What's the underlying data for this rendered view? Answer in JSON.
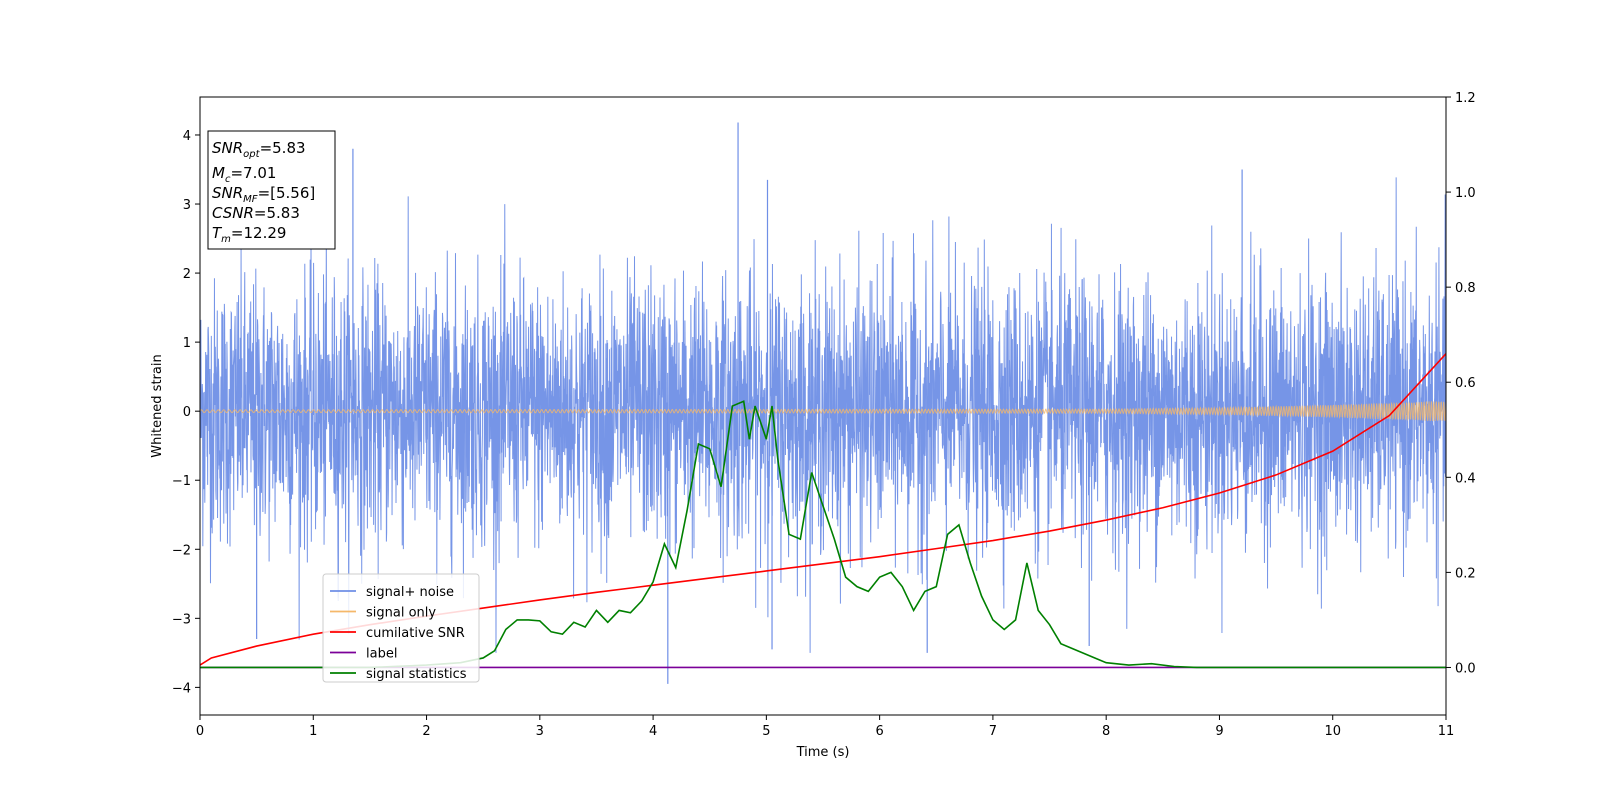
{
  "chart_data": {
    "type": "line",
    "xlabel": "Time (s)",
    "ylabel": "Whitened strain",
    "xlim": [
      0,
      11
    ],
    "ylim_left": [
      -4.4,
      4.55
    ],
    "ylim_right": [
      -0.1,
      1.2
    ],
    "x_ticks": [
      "0",
      "1",
      "2",
      "3",
      "4",
      "5",
      "6",
      "7",
      "8",
      "9",
      "10",
      "11"
    ],
    "y_ticks_left": [
      "−4",
      "−3",
      "−2",
      "−1",
      "0",
      "1",
      "2",
      "3",
      "4"
    ],
    "y_ticks_right": [
      "0.0",
      "0.2",
      "0.4",
      "0.6",
      "0.8",
      "1.0",
      "1.2"
    ],
    "grid": false,
    "legend_placement": "lower-left",
    "info_box": {
      "snr_opt": "=5.83",
      "mc": "=7.01",
      "snr_mf": "=[5.56]",
      "csnr": "=5.83",
      "tm": "=12.29"
    },
    "series": [
      {
        "name": "signal+ noise",
        "axis": "left",
        "color": "#6f8fe6",
        "description_values": {
          "typical_range": [
            -2.3,
            2.3
          ],
          "max_peak": 4.18,
          "min_peak": -3.95
        }
      },
      {
        "name": "signal only",
        "axis": "left",
        "color": "#f5b86a",
        "envelope": {
          "x": [
            0,
            8,
            9,
            10,
            11
          ],
          "amplitude": [
            0.02,
            0.03,
            0.05,
            0.09,
            0.15
          ]
        }
      },
      {
        "name": "cumilative SNR",
        "axis": "right",
        "color": "#ff0000",
        "x": [
          0,
          0.1,
          0.5,
          1,
          1.5,
          2,
          2.5,
          3,
          3.5,
          4,
          4.5,
          5,
          5.5,
          6,
          6.5,
          7,
          7.5,
          8,
          8.5,
          9,
          9.5,
          10,
          10.5,
          11
        ],
        "values": [
          0.005,
          0.02,
          0.045,
          0.07,
          0.09,
          0.108,
          0.125,
          0.142,
          0.158,
          0.173,
          0.188,
          0.203,
          0.218,
          0.233,
          0.25,
          0.267,
          0.287,
          0.31,
          0.336,
          0.367,
          0.405,
          0.455,
          0.53,
          0.66
        ]
      },
      {
        "name": "label",
        "axis": "right",
        "color": "#7b0099",
        "x": [
          0,
          11
        ],
        "values": [
          0.0,
          0.0
        ]
      },
      {
        "name": "signal statistics",
        "axis": "right",
        "color": "#008000",
        "x": [
          0,
          0.5,
          1,
          1.5,
          2,
          2.3,
          2.5,
          2.6,
          2.7,
          2.8,
          2.9,
          3.0,
          3.1,
          3.2,
          3.3,
          3.4,
          3.5,
          3.6,
          3.7,
          3.8,
          3.9,
          4.0,
          4.1,
          4.2,
          4.3,
          4.4,
          4.5,
          4.6,
          4.7,
          4.8,
          4.85,
          4.9,
          5.0,
          5.05,
          5.1,
          5.2,
          5.3,
          5.4,
          5.5,
          5.6,
          5.7,
          5.8,
          5.9,
          6.0,
          6.1,
          6.2,
          6.3,
          6.4,
          6.5,
          6.6,
          6.7,
          6.8,
          6.9,
          7.0,
          7.1,
          7.2,
          7.3,
          7.4,
          7.5,
          7.6,
          7.7,
          7.8,
          7.9,
          8.0,
          8.2,
          8.4,
          8.6,
          8.8,
          9.0,
          9.5,
          10,
          11
        ],
        "values": [
          0.0,
          0.0,
          0.0,
          0.0,
          0.005,
          0.01,
          0.02,
          0.035,
          0.08,
          0.1,
          0.1,
          0.098,
          0.075,
          0.07,
          0.095,
          0.085,
          0.12,
          0.095,
          0.12,
          0.115,
          0.14,
          0.18,
          0.26,
          0.21,
          0.33,
          0.47,
          0.46,
          0.38,
          0.55,
          0.56,
          0.48,
          0.55,
          0.48,
          0.55,
          0.44,
          0.28,
          0.27,
          0.41,
          0.34,
          0.27,
          0.19,
          0.17,
          0.16,
          0.19,
          0.2,
          0.17,
          0.12,
          0.16,
          0.17,
          0.28,
          0.3,
          0.22,
          0.15,
          0.1,
          0.08,
          0.1,
          0.22,
          0.12,
          0.09,
          0.05,
          0.04,
          0.03,
          0.02,
          0.01,
          0.005,
          0.008,
          0.002,
          0.0,
          0.0,
          0.0,
          0.0,
          0.0
        ]
      }
    ]
  }
}
